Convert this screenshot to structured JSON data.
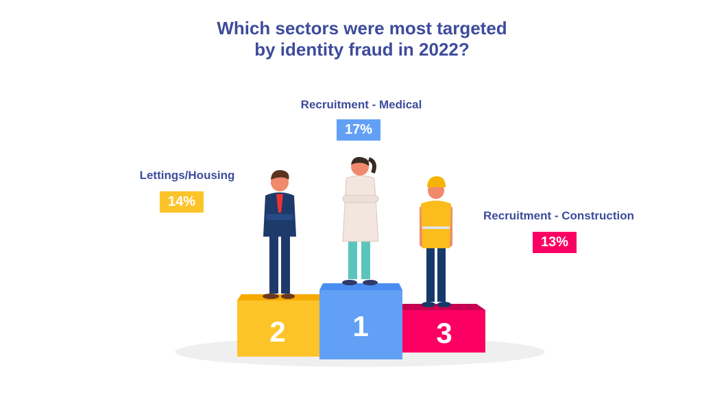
{
  "title": {
    "line1": "Which sectors were most targeted",
    "line2": "by identity fraud in 2022?"
  },
  "podium": [
    {
      "rank": "1",
      "sector": "Recruitment - Medical",
      "percent": "17%",
      "color": "#62a0f6"
    },
    {
      "rank": "2",
      "sector": "Lettings/Housing",
      "percent": "14%",
      "color": "#fdc42a"
    },
    {
      "rank": "3",
      "sector": "Recruitment - Construction",
      "percent": "13%",
      "color": "#fb0062"
    }
  ],
  "text_color": "#3d4b9b"
}
